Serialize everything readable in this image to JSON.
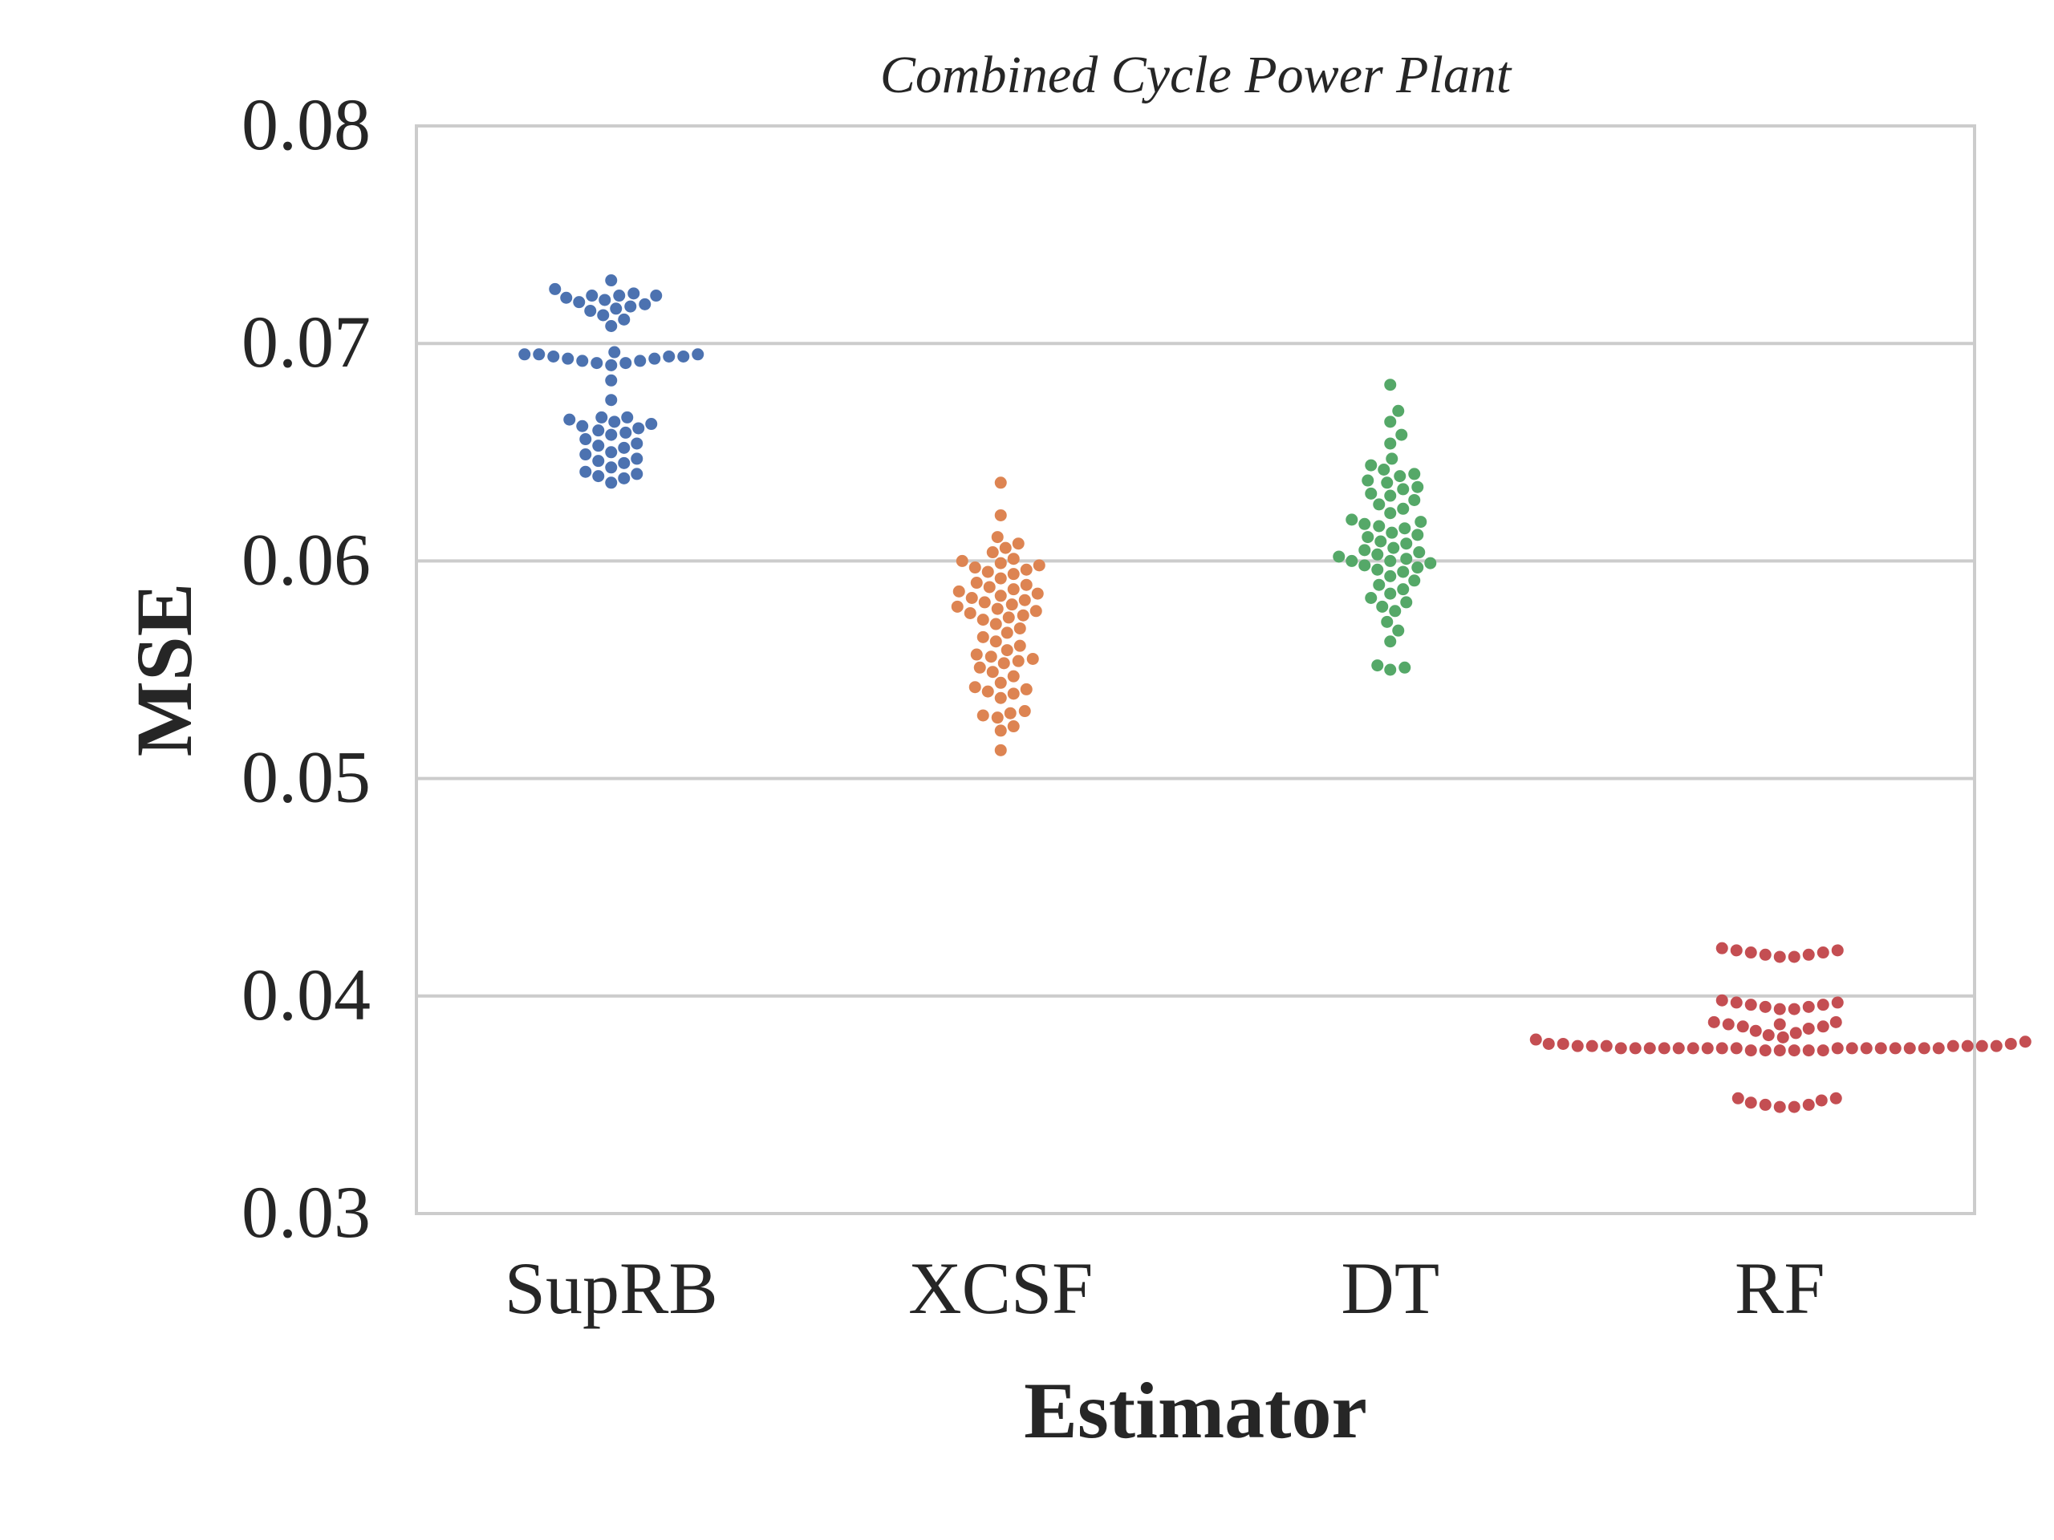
{
  "chart_data": {
    "type": "scatter",
    "subtype": "swarm",
    "title": "Combined Cycle Power Plant",
    "xlabel": "Estimator",
    "ylabel": "MSE",
    "ylim": [
      0.03,
      0.08
    ],
    "yticks": [
      "0.03",
      "0.04",
      "0.05",
      "0.06",
      "0.07",
      "0.08"
    ],
    "ytick_values": [
      0.03,
      0.04,
      0.05,
      0.06,
      0.07,
      0.08
    ],
    "grid": true,
    "legend": "none",
    "categories": [
      "SupRB",
      "XCSF",
      "DT",
      "RF"
    ],
    "colors": [
      "#4c72b0",
      "#dd8452",
      "#55a868",
      "#c44e52"
    ],
    "series": [
      {
        "name": "SupRB",
        "values": [
          0.0729,
          0.0725,
          0.0723,
          0.0722,
          0.0722,
          0.0722,
          0.0721,
          0.072,
          0.0719,
          0.0718,
          0.0717,
          0.0716,
          0.0715,
          0.0713,
          0.0711,
          0.0708,
          0.0696,
          0.0695,
          0.0695,
          0.0695,
          0.0694,
          0.0694,
          0.0694,
          0.0693,
          0.0693,
          0.0692,
          0.0692,
          0.0691,
          0.0691,
          0.069,
          0.0683,
          0.0674,
          0.0666,
          0.0666,
          0.0665,
          0.0664,
          0.0663,
          0.0662,
          0.0661,
          0.066,
          0.0659,
          0.0658,
          0.0656,
          0.0654,
          0.0653,
          0.0652,
          0.065,
          0.0649,
          0.0647,
          0.0646,
          0.0645,
          0.0643,
          0.0641,
          0.064,
          0.0639,
          0.0638,
          0.0636
        ]
      },
      {
        "name": "XCSF",
        "values": [
          0.0636,
          0.0621,
          0.0611,
          0.0608,
          0.0606,
          0.0604,
          0.0601,
          0.06,
          0.0599,
          0.0598,
          0.0597,
          0.0596,
          0.0595,
          0.0594,
          0.0592,
          0.059,
          0.0589,
          0.0588,
          0.0587,
          0.0586,
          0.0585,
          0.0584,
          0.0583,
          0.0582,
          0.0581,
          0.058,
          0.0579,
          0.0578,
          0.0577,
          0.0576,
          0.0575,
          0.0574,
          0.0573,
          0.0571,
          0.0569,
          0.0567,
          0.0565,
          0.0563,
          0.0561,
          0.0559,
          0.0557,
          0.0556,
          0.0555,
          0.0554,
          0.0553,
          0.0551,
          0.0549,
          0.0547,
          0.0544,
          0.0542,
          0.0541,
          0.054,
          0.0539,
          0.0537,
          0.0531,
          0.053,
          0.0529,
          0.0528,
          0.0524,
          0.0522,
          0.0513
        ]
      },
      {
        "name": "DT",
        "values": [
          0.0681,
          0.0669,
          0.0664,
          0.0658,
          0.0654,
          0.0647,
          0.0644,
          0.0642,
          0.064,
          0.0639,
          0.0637,
          0.0636,
          0.0634,
          0.0633,
          0.0631,
          0.063,
          0.0628,
          0.0626,
          0.0624,
          0.0622,
          0.0619,
          0.0618,
          0.0617,
          0.0616,
          0.0615,
          0.0613,
          0.0612,
          0.0611,
          0.0609,
          0.0608,
          0.0606,
          0.0605,
          0.0604,
          0.0603,
          0.0602,
          0.0601,
          0.06,
          0.06,
          0.0599,
          0.0598,
          0.0597,
          0.0596,
          0.0595,
          0.0593,
          0.0591,
          0.0589,
          0.0587,
          0.0585,
          0.0583,
          0.0581,
          0.0579,
          0.0577,
          0.0572,
          0.0568,
          0.0563,
          0.0552,
          0.0551,
          0.055
        ]
      },
      {
        "name": "RF",
        "values": [
          0.0422,
          0.0421,
          0.0421,
          0.042,
          0.042,
          0.0419,
          0.0419,
          0.0418,
          0.0418,
          0.0398,
          0.0397,
          0.0397,
          0.0396,
          0.0396,
          0.0395,
          0.0395,
          0.0394,
          0.0394,
          0.0388,
          0.0388,
          0.0387,
          0.0387,
          0.0386,
          0.0386,
          0.0385,
          0.0384,
          0.0383,
          0.0382,
          0.0381,
          0.038,
          0.0379,
          0.0378,
          0.0378,
          0.0378,
          0.0377,
          0.0377,
          0.0377,
          0.0377,
          0.0377,
          0.0377,
          0.0377,
          0.0376,
          0.0376,
          0.0376,
          0.0376,
          0.0376,
          0.0376,
          0.0376,
          0.0376,
          0.0376,
          0.0376,
          0.0376,
          0.0376,
          0.0376,
          0.0376,
          0.0376,
          0.0376,
          0.0376,
          0.0375,
          0.0375,
          0.0375,
          0.0375,
          0.0375,
          0.0375,
          0.0353,
          0.0353,
          0.0352,
          0.0351,
          0.035,
          0.035,
          0.0349,
          0.0349
        ]
      }
    ]
  }
}
